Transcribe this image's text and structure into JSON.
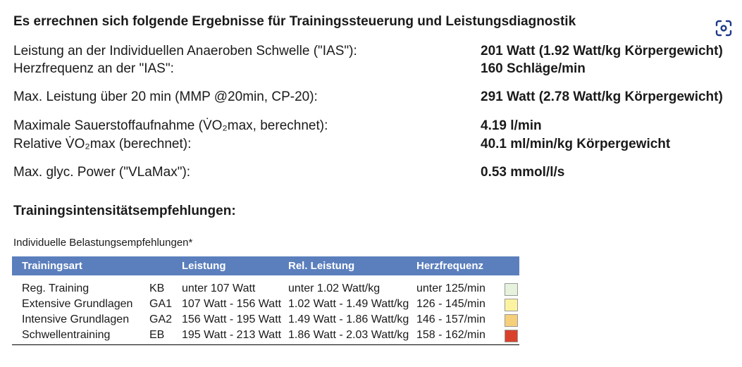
{
  "heading": "Es errechnen sich folgende Ergebnisse für Trainingssteuerung und Leistungsdiagnostik",
  "results": [
    {
      "label": "Leistung an der Individuellen Anaeroben Schwelle (\"IAS\"):",
      "value": "201 Watt (1.92 Watt/kg Körpergewicht)"
    },
    {
      "label": "Herzfrequenz an der \"IAS\":",
      "value": "160 Schläge/min"
    },
    {
      "label": "Max. Leistung über 20 min (MMP @20min, CP-20):",
      "value": "291 Watt (2.78 Watt/kg Körpergewicht)"
    },
    {
      "label": "Maximale Sauerstoffaufnahme (V̇O₂max, berechnet):",
      "value": "4.19 l/min"
    },
    {
      "label": "Relative V̇O₂max (berechnet):",
      "value": "40.1 ml/min/kg Körpergewicht"
    },
    {
      "label": "Max. glyc. Power (\"VLaMax\"):",
      "value": "0.53 mmol/l/s"
    }
  ],
  "recommendations_heading": "Trainingsintensitätsempfehlungen:",
  "table_caption": "Individuelle Belastungsempfehlungen*",
  "table": {
    "headers": [
      "Trainingsart",
      "Leistung",
      "Rel. Leistung",
      "Herzfrequenz"
    ],
    "rows": [
      {
        "type": "Reg. Training",
        "code": "KB",
        "power": "unter 107 Watt",
        "rel_power": "unter 1.02 Watt/kg",
        "hr": "unter 125/min",
        "color": "#e6f2dc"
      },
      {
        "type": "Extensive Grundlagen",
        "code": "GA1",
        "power": "107 Watt - 156 Watt",
        "rel_power": "1.02 Watt - 1.49 Watt/kg",
        "hr": "126 - 145/min",
        "color": "#fbf3a0"
      },
      {
        "type": "Intensive Grundlagen",
        "code": "GA2",
        "power": "156 Watt - 195 Watt",
        "rel_power": "1.49 Watt - 1.86 Watt/kg",
        "hr": "146 - 157/min",
        "color": "#f5cf7a"
      },
      {
        "type": "Schwellentraining",
        "code": "EB",
        "power": "195 Watt - 213 Watt",
        "rel_power": "1.86 Watt - 2.03 Watt/kg",
        "hr": "158 - 162/min",
        "color": "#d9412b"
      }
    ]
  },
  "icons": {
    "lens": "lens-scan-icon"
  }
}
